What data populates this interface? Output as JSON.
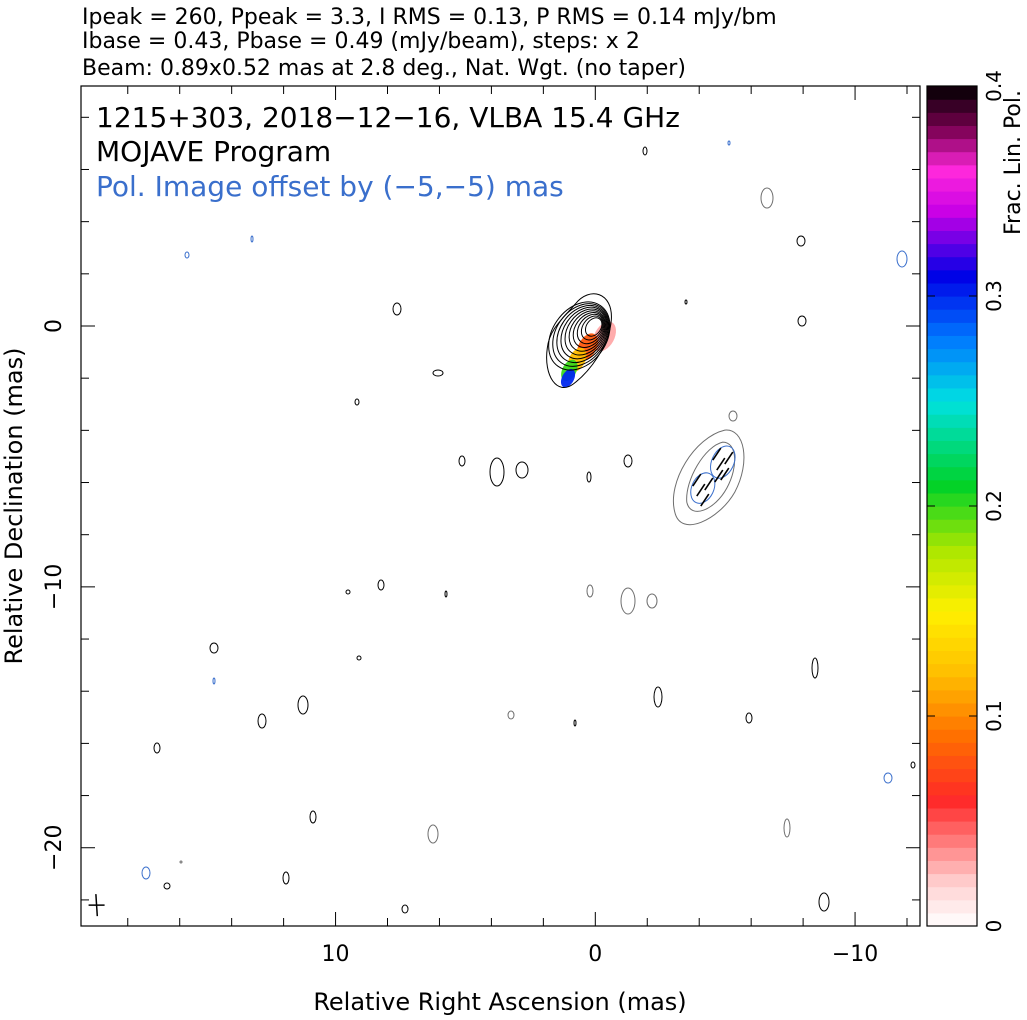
{
  "header": {
    "line1": "Ipeak = 260, Ppeak = 3.3, I RMS = 0.13, P RMS = 0.14 mJy/bm",
    "line2": "Ibase = 0.43, Pbase = 0.49 (mJy/beam), steps: x 2",
    "line3": "Beam: 0.89x0.52 mas at 2.8 deg., Nat. Wgt. (no taper)"
  },
  "annotation": {
    "source": "1215+303, 2018−12−16, VLBA 15.4 GHz",
    "program": "MOJAVE Program",
    "pol_offset": "Pol. Image offset by (−5,−5) mas"
  },
  "colors": {
    "stokes_i_contour": "#000000",
    "pol_contour": "#3a6fcc",
    "offset_contour": "#6e6e6e",
    "frame": "#000000"
  },
  "chart_data": {
    "type": "contour",
    "xlabel": "Relative Right Ascension (mas)",
    "ylabel": "Relative Declination (mas)",
    "xlim": [
      19.8,
      -12.5
    ],
    "ylim": [
      -23.0,
      9.2
    ],
    "x_ticks": [
      {
        "value": 10,
        "label": "10"
      },
      {
        "value": 0,
        "label": "0"
      },
      {
        "value": -10,
        "label": "−10"
      }
    ],
    "y_ticks": [
      {
        "value": 0,
        "label": "0"
      },
      {
        "value": -10,
        "label": "−10"
      },
      {
        "value": -20,
        "label": "−20"
      }
    ],
    "colorbar": {
      "label": "Frac. Lin. Pol.",
      "range": [
        0,
        0.4
      ],
      "ticks": [
        {
          "value": 0,
          "label": "0"
        },
        {
          "value": 0.1,
          "label": "0.1"
        },
        {
          "value": 0.2,
          "label": "0.2"
        },
        {
          "value": 0.3,
          "label": "0.3"
        },
        {
          "value": 0.4,
          "label": "0.4"
        }
      ]
    },
    "core": {
      "x": 0.0,
      "y": 0.0,
      "peak_mJy_per_beam": 260
    },
    "stokes_i_base_mJy_per_beam": 0.43,
    "pol_base_mJy_per_beam": 0.49,
    "contour_step_factor": 2,
    "beam": {
      "major_mas": 0.89,
      "minor_mas": 0.52,
      "pa_deg": 2.8,
      "x": 19.2,
      "y": -22.2
    },
    "polarized_component": {
      "x": -4.6,
      "y": -5.6,
      "offset_mas": [
        -5,
        -5
      ]
    },
    "frac_pol_patches": [
      {
        "x": -0.35,
        "y": -0.4,
        "frac_pol": 0.03
      },
      {
        "x": 0.3,
        "y": -0.8,
        "frac_pol": 0.08
      },
      {
        "x": 0.7,
        "y": -1.3,
        "frac_pol": 0.12
      },
      {
        "x": 1.0,
        "y": -1.7,
        "frac_pol": 0.2
      },
      {
        "x": 1.05,
        "y": -2.0,
        "frac_pol": 0.3
      }
    ],
    "evpa_sticks_near": [
      -4.6,
      -5.6
    ]
  }
}
